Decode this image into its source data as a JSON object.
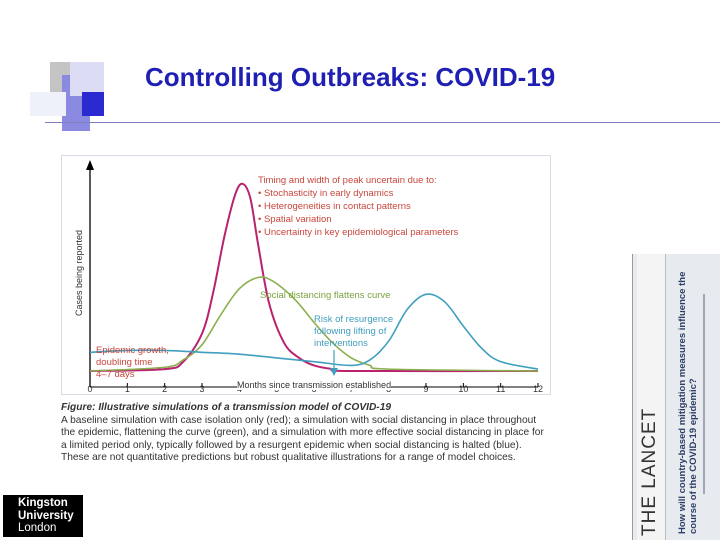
{
  "slide": {
    "title": "Controlling Outbreaks: COVID-19"
  },
  "chart_data": {
    "type": "line",
    "xlabel": "Months since transmission established",
    "ylabel": "Cases being reported",
    "xlim": [
      0,
      12
    ],
    "ylim": [
      0,
      1.0
    ],
    "x_ticks": [
      0,
      1,
      2,
      3,
      4,
      5,
      6,
      7,
      8,
      9,
      10,
      11,
      12
    ],
    "series": [
      {
        "color": "#b8226f",
        "x": [
          0,
          2,
          2.5,
          3,
          3.3,
          3.6,
          3.9,
          4.1,
          4.3,
          4.5,
          4.8,
          5.2,
          5.6,
          6,
          6.5,
          7,
          12
        ],
        "y": [
          0,
          0.01,
          0.05,
          0.2,
          0.42,
          0.72,
          0.95,
          1.0,
          0.92,
          0.68,
          0.36,
          0.15,
          0.07,
          0.03,
          0.01,
          0.0,
          0.0
        ]
      },
      {
        "color": "#8bb04e",
        "x": [
          0,
          2,
          2.5,
          3,
          3.5,
          4,
          4.5,
          4.9,
          5.5,
          6,
          6.5,
          7,
          7.5,
          8,
          12
        ],
        "y": [
          0,
          0.02,
          0.06,
          0.14,
          0.3,
          0.44,
          0.5,
          0.48,
          0.38,
          0.26,
          0.15,
          0.07,
          0.03,
          0.01,
          0.0
        ]
      },
      {
        "color": "#3f9fbf",
        "x": [
          0,
          1,
          2,
          3,
          4,
          5,
          6,
          7,
          7.5,
          8,
          8.5,
          9,
          9.5,
          10,
          10.5,
          11,
          12
        ],
        "y": [
          0.1,
          0.11,
          0.11,
          0.1,
          0.09,
          0.07,
          0.05,
          0.03,
          0.06,
          0.16,
          0.33,
          0.41,
          0.37,
          0.24,
          0.12,
          0.05,
          0.01
        ]
      }
    ],
    "annotations": {
      "uncertainty_title": "Timing and width of peak uncertain due to:",
      "uncertainty_items": [
        "• Stochasticity in early dynamics",
        "• Heterogeneities in contact patterns",
        "• Spatial variation",
        "• Uncertainty in key epidemiological parameters"
      ],
      "flatten": "Social distancing flattens curve",
      "resurgence": [
        "Risk of resurgence",
        "following lifting of",
        "interventions"
      ],
      "growth": [
        "Epidemic growth,",
        "doubling time",
        "4–7 days"
      ]
    }
  },
  "caption": {
    "label": "Figure: Illustrative simulations of a transmission model of COVID-19",
    "text": "A baseline simulation with case isolation only (red); a simulation with social distancing in place throughout the epidemic, flattening the curve (green), and a simulation with more effective social distancing in place for a limited period only, typically followed by a resurgent epidemic when social distancing is halted (blue). These are not quantitative predictions but robust qualitative illustrations for a range of model choices."
  },
  "logo": {
    "line1": "Kingston",
    "line2": "University",
    "line3": "London"
  },
  "journal": {
    "name": "THE LANCET",
    "headline": "How will country-based mitigation measures influence the course of the COVID-19 epidemic?"
  },
  "colors": {
    "accent": "#1f1fb4",
    "red_curve": "#b8226f",
    "green_curve": "#8bb04e",
    "blue_curve": "#3f9fbf",
    "annotation": "#c8463c"
  }
}
